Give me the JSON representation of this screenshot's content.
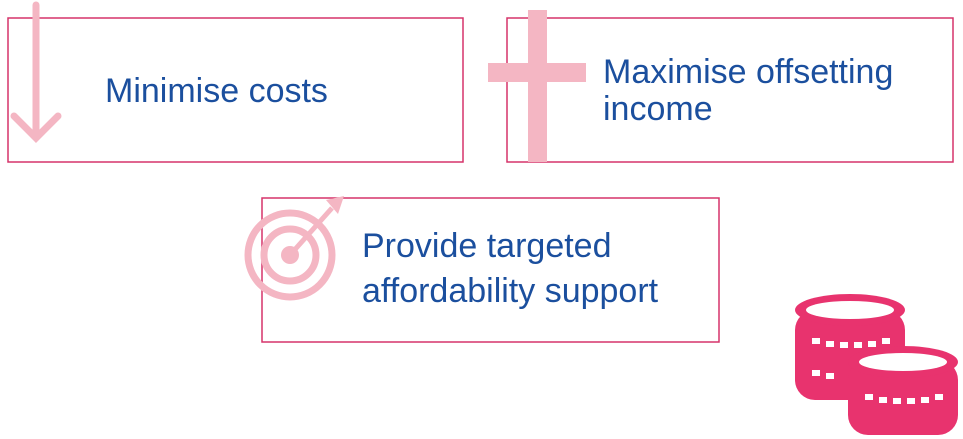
{
  "boxes": [
    {
      "label": [
        "Minimise costs"
      ]
    },
    {
      "label": [
        "Maximise offsetting",
        "income"
      ]
    },
    {
      "label": [
        "Provide targeted",
        "affordability support"
      ]
    }
  ]
}
